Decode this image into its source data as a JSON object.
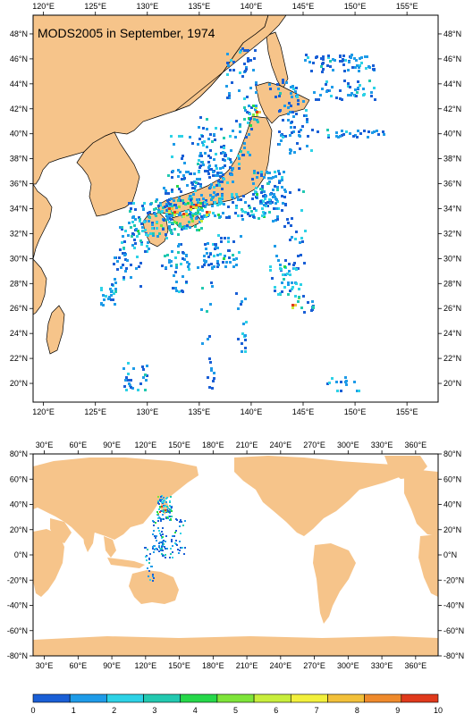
{
  "top_map": {
    "title": "MODS2005 in September, 1974",
    "lon_labels": [
      "120°E",
      "125°E",
      "130°E",
      "135°E",
      "140°E",
      "145°E",
      "150°E",
      "155°E"
    ],
    "lon_values": [
      120,
      125,
      130,
      135,
      140,
      145,
      150,
      155
    ],
    "lat_labels": [
      "20°N",
      "22°N",
      "24°N",
      "26°N",
      "28°N",
      "30°N",
      "32°N",
      "34°N",
      "36°N",
      "38°N",
      "40°N",
      "42°N",
      "44°N",
      "46°N",
      "48°N"
    ],
    "lat_values": [
      20,
      22,
      24,
      26,
      28,
      30,
      32,
      34,
      36,
      38,
      40,
      42,
      44,
      46,
      48
    ],
    "lon_range": [
      119,
      158
    ],
    "lat_range": [
      18.5,
      49.5
    ]
  },
  "bottom_map": {
    "lon_labels": [
      "30°E",
      "60°E",
      "90°E",
      "120°E",
      "150°E",
      "180°E",
      "210°E",
      "240°E",
      "270°E",
      "300°E",
      "330°E",
      "360°E"
    ],
    "lon_values": [
      30,
      60,
      90,
      120,
      150,
      180,
      210,
      240,
      270,
      300,
      330,
      360
    ],
    "lat_labels": [
      "80°N",
      "60°N",
      "40°N",
      "20°N",
      "0°N",
      "-20°N",
      "-40°N",
      "-60°N",
      "-80°N"
    ],
    "lat_values": [
      80,
      60,
      40,
      20,
      0,
      -20,
      -40,
      -60,
      -80
    ],
    "lon_range": [
      20,
      380
    ],
    "lat_range": [
      -80,
      80
    ]
  },
  "colorbar": {
    "labels": [
      "0",
      "1",
      "2",
      "3",
      "4",
      "5",
      "6",
      "7",
      "8",
      "9",
      "10"
    ],
    "colors": [
      "#1a5fd6",
      "#1e9be8",
      "#2dd2e6",
      "#22c9b0",
      "#26d84a",
      "#7ee53a",
      "#c8ee3c",
      "#f2f03c",
      "#f2c03a",
      "#ef8a2c",
      "#e03a1c"
    ]
  },
  "colors": {
    "land": "#f6c48a",
    "sea": "#ffffff",
    "coast": "#000000"
  }
}
